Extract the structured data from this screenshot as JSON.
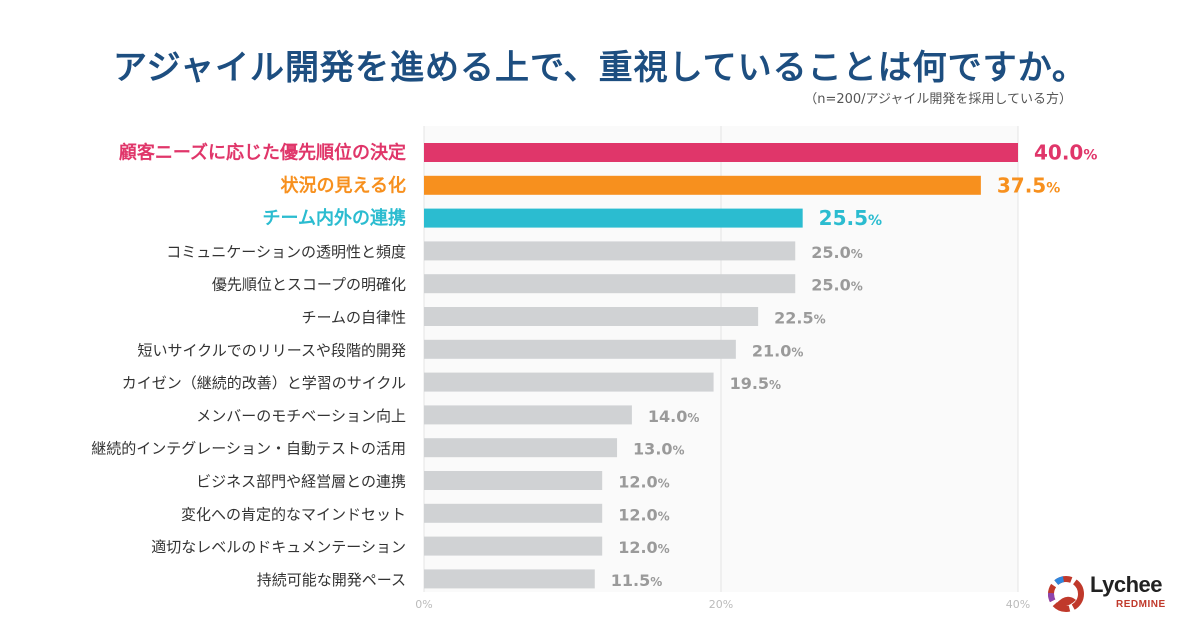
{
  "chart_data": {
    "type": "bar",
    "orientation": "horizontal",
    "title": "アジャイル開発を進める上で、重視していることは何ですか。",
    "subtitle": "（n=200/アジャイル開発を採用している方）",
    "categories": [
      "顧客ニーズに応じた優先順位の決定",
      "状況の見える化",
      "チーム内外の連携",
      "コミュニケーションの透明性と頻度",
      "優先順位とスコープの明確化",
      "チームの自律性",
      "短いサイクルでのリリースや段階的開発",
      "カイゼン（継続的改善）と学習のサイクル",
      "メンバーのモチベーション向上",
      "継続的インテグレーション・自動テストの活用",
      "ビジネス部門や経営層との連携",
      "変化への肯定的なマインドセット",
      "適切なレベルのドキュメンテーション",
      "持続可能な開発ペース"
    ],
    "values": [
      40.0,
      37.5,
      25.5,
      25.0,
      25.0,
      22.5,
      21.0,
      19.5,
      14.0,
      13.0,
      12.0,
      12.0,
      12.0,
      11.5
    ],
    "value_labels": [
      "40.0",
      "37.5",
      "25.5",
      "25.0",
      "25.0",
      "22.5",
      "21.0",
      "19.5",
      "14.0",
      "13.0",
      "12.0",
      "12.0",
      "12.0",
      "11.5"
    ],
    "unit": "%",
    "highlight_colors": [
      "#e0366a",
      "#f7901e",
      "#2bbcd0"
    ],
    "default_color": "#d0d2d4",
    "default_label_color": "#333333",
    "default_value_color": "#9a9a9a",
    "xlim": [
      0,
      40
    ],
    "xticks": [
      0,
      20,
      40
    ],
    "xtick_labels": [
      "0%",
      "20%",
      "40%"
    ],
    "grid": true
  },
  "logo": {
    "name": "Lychee",
    "sub": "REDMINE"
  }
}
